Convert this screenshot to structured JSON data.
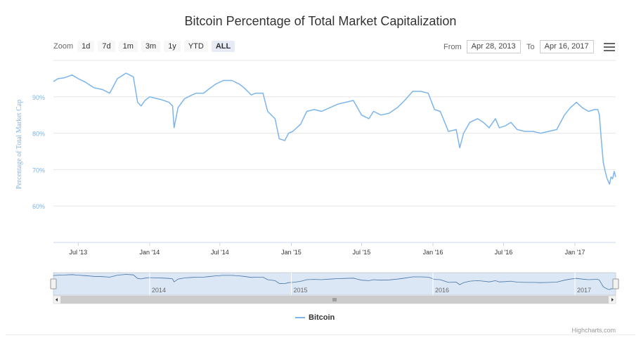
{
  "toolbar": {
    "zoom_label": "Zoom",
    "buttons": [
      "1d",
      "7d",
      "1m",
      "3m",
      "1y",
      "YTD",
      "ALL"
    ],
    "from_label": "From",
    "from_value": "Apr 28, 2013",
    "to_label": "To",
    "to_value": "Apr 16, 2017"
  },
  "credits": "Highcharts.com",
  "chart_data": {
    "type": "line",
    "title": "Bitcoin Percentage of Total Market Capitalization",
    "ylabel": "Percentage of Total Market Cap",
    "ylim": [
      50,
      100
    ],
    "yticks": [
      "60%",
      "70%",
      "80%",
      "90%"
    ],
    "xlim": [
      "2013-04-28",
      "2017-04-16"
    ],
    "xticks": [
      "Jul '13",
      "Jan '14",
      "Jul '14",
      "Jan '15",
      "Jul '15",
      "Jan '16",
      "Jul '16",
      "Jan '17"
    ],
    "navigator_ticks": [
      "2014",
      "2015",
      "2016",
      "2017"
    ],
    "legend_position": "bottom",
    "series": [
      {
        "name": "Bitcoin",
        "color": "#7cb5ec",
        "x": [
          "2013-04-28",
          "2013-05-10",
          "2013-05-25",
          "2013-06-15",
          "2013-07-01",
          "2013-07-20",
          "2013-08-10",
          "2013-09-01",
          "2013-09-20",
          "2013-10-10",
          "2013-11-01",
          "2013-11-20",
          "2013-12-01",
          "2013-12-10",
          "2013-12-20",
          "2014-01-01",
          "2014-01-20",
          "2014-02-01",
          "2014-02-20",
          "2014-03-01",
          "2014-03-05",
          "2014-03-15",
          "2014-04-01",
          "2014-04-20",
          "2014-05-01",
          "2014-05-20",
          "2014-06-01",
          "2014-06-20",
          "2014-07-10",
          "2014-08-01",
          "2014-08-20",
          "2014-09-01",
          "2014-09-20",
          "2014-10-01",
          "2014-10-20",
          "2014-11-01",
          "2014-11-20",
          "2014-12-01",
          "2014-12-15",
          "2014-12-25",
          "2015-01-05",
          "2015-01-25",
          "2015-02-10",
          "2015-03-01",
          "2015-03-20",
          "2015-04-10",
          "2015-05-01",
          "2015-05-20",
          "2015-06-10",
          "2015-07-01",
          "2015-07-20",
          "2015-08-01",
          "2015-08-20",
          "2015-09-10",
          "2015-10-01",
          "2015-10-20",
          "2015-11-10",
          "2015-12-01",
          "2015-12-20",
          "2016-01-05",
          "2016-01-20",
          "2016-02-10",
          "2016-03-01",
          "2016-03-10",
          "2016-03-20",
          "2016-04-05",
          "2016-04-25",
          "2016-05-10",
          "2016-05-25",
          "2016-06-10",
          "2016-06-20",
          "2016-07-05",
          "2016-07-20",
          "2016-08-05",
          "2016-08-25",
          "2016-09-15",
          "2016-10-05",
          "2016-10-25",
          "2016-11-15",
          "2016-12-05",
          "2016-12-20",
          "2017-01-05",
          "2017-01-20",
          "2017-02-05",
          "2017-02-20",
          "2017-03-01",
          "2017-03-05",
          "2017-03-10",
          "2017-03-15",
          "2017-03-20",
          "2017-03-25",
          "2017-03-31",
          "2017-04-04",
          "2017-04-08",
          "2017-04-12",
          "2017-04-16"
        ],
        "values": [
          94.2,
          95.0,
          95.2,
          96.0,
          95.0,
          94.0,
          92.5,
          92.0,
          91.0,
          95.0,
          96.5,
          95.5,
          88.5,
          87.5,
          89.0,
          90.0,
          89.5,
          89.2,
          88.5,
          87.5,
          81.5,
          87.0,
          89.5,
          90.5,
          91.0,
          91.0,
          92.0,
          93.5,
          94.5,
          94.5,
          93.5,
          92.5,
          90.5,
          91.0,
          91.0,
          86.0,
          84.0,
          78.5,
          78.0,
          80.0,
          80.5,
          82.5,
          86.0,
          86.5,
          86.0,
          87.0,
          88.0,
          88.5,
          89.0,
          85.0,
          84.0,
          86.0,
          85.0,
          85.5,
          87.0,
          89.0,
          91.5,
          91.5,
          91.0,
          86.5,
          86.0,
          80.5,
          81.0,
          76.0,
          80.0,
          83.0,
          84.0,
          83.0,
          81.5,
          84.0,
          81.5,
          82.0,
          83.0,
          81.0,
          80.5,
          80.5,
          80.0,
          80.5,
          81.0,
          85.0,
          87.0,
          88.5,
          87.0,
          86.0,
          86.5,
          86.5,
          85.0,
          78.0,
          72.0,
          69.5,
          67.5,
          66.0,
          68.0,
          67.5,
          69.5,
          68.0
        ]
      }
    ]
  }
}
